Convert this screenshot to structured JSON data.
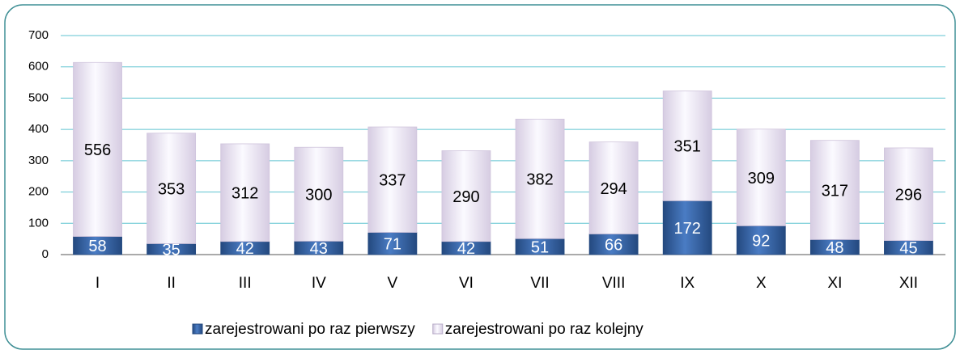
{
  "chart_data": {
    "type": "stacked_bar",
    "categories": [
      "I",
      "II",
      "III",
      "IV",
      "V",
      "VI",
      "VII",
      "VIII",
      "IX",
      "X",
      "XI",
      "XII"
    ],
    "series": [
      {
        "name": "zarejestrowani po raz pierwszy",
        "color": "#2e5a9c",
        "values": [
          58,
          35,
          42,
          43,
          71,
          42,
          51,
          66,
          172,
          92,
          48,
          45
        ]
      },
      {
        "name": "zarejestrowani po raz kolejny",
        "color": "#e4dcec",
        "values": [
          556,
          353,
          312,
          300,
          337,
          290,
          382,
          294,
          351,
          309,
          317,
          296
        ]
      }
    ],
    "ylim": [
      0,
      700
    ],
    "yticks": [
      0,
      100,
      200,
      300,
      400,
      500,
      600,
      700
    ],
    "grid": true,
    "legend": "bottom"
  }
}
